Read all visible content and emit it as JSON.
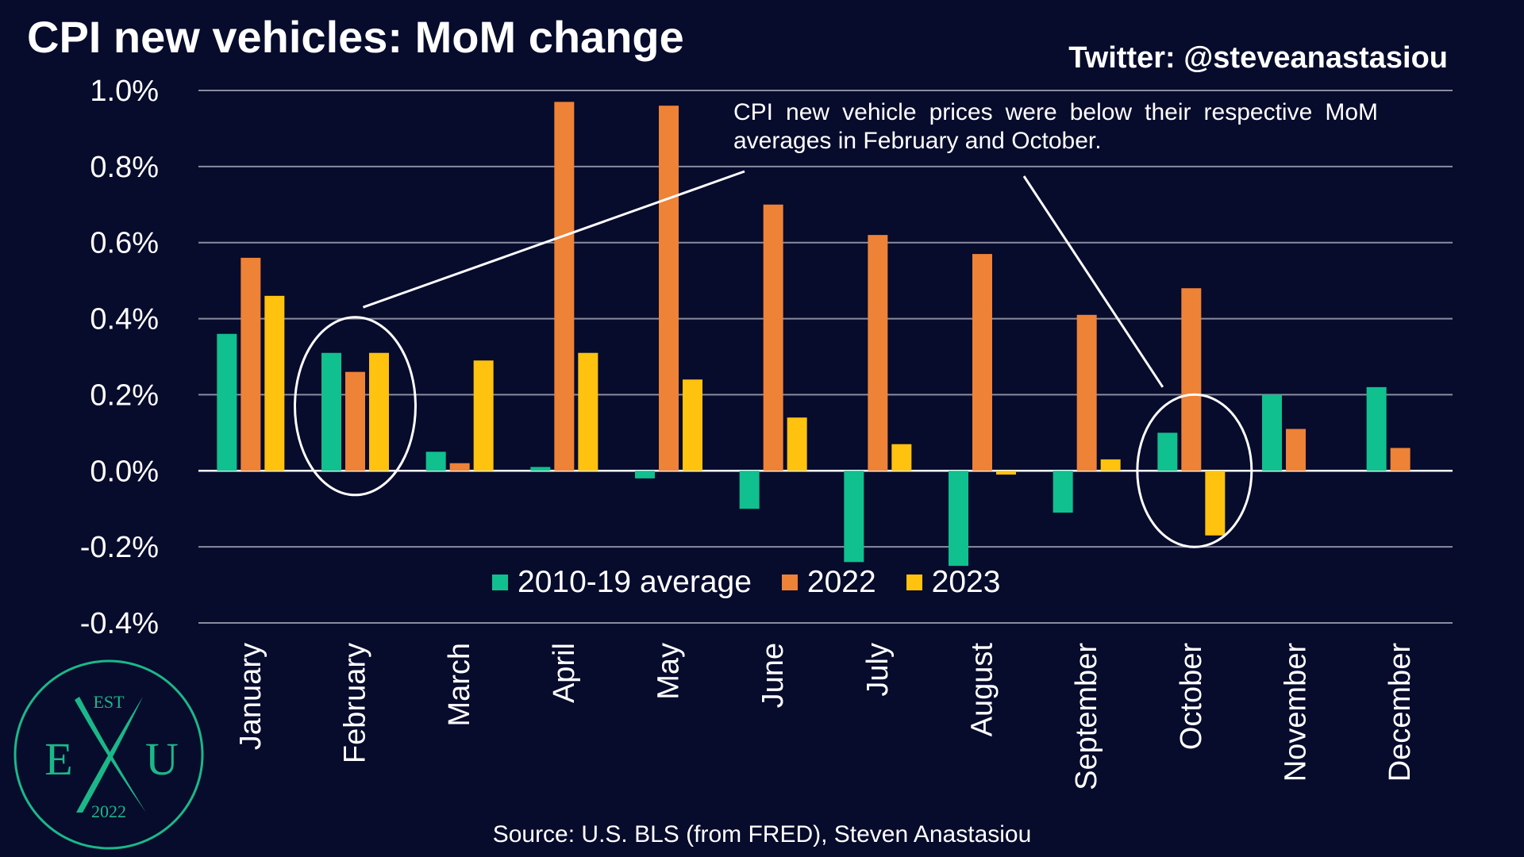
{
  "title": "CPI new vehicles: MoM change",
  "twitter_handle": "Twitter: @steveanastasiou",
  "source": "Source: U.S. BLS (from FRED), Steven Anastasiou",
  "annotation": "CPI new vehicle prices were below their respective MoM averages in February and October.",
  "colors": {
    "background": "#070b2c",
    "gridline": "#8a8ca0",
    "series_2010_19": "#10c08e",
    "series_2022": "#ee8236",
    "series_2023": "#ffc20e",
    "logo": "#1ab889"
  },
  "logo": {
    "top_text": "EST",
    "left_letter": "E",
    "right_letter": "U",
    "bottom_text": "2022"
  },
  "chart_data": {
    "type": "bar",
    "title": "CPI new vehicles: MoM change",
    "categories": [
      "January",
      "February",
      "March",
      "April",
      "May",
      "June",
      "July",
      "August",
      "September",
      "October",
      "November",
      "December"
    ],
    "series": [
      {
        "name": "2010-19 average",
        "color": "#10c08e",
        "values": [
          0.36,
          0.31,
          0.05,
          0.01,
          -0.02,
          -0.1,
          -0.24,
          -0.25,
          -0.11,
          0.1,
          0.2,
          0.22
        ]
      },
      {
        "name": "2022",
        "color": "#ee8236",
        "values": [
          0.56,
          0.26,
          0.02,
          0.97,
          0.96,
          0.7,
          0.62,
          0.57,
          0.41,
          0.48,
          0.11,
          0.06
        ]
      },
      {
        "name": "2023",
        "color": "#ffc20e",
        "values": [
          0.46,
          0.31,
          0.29,
          0.31,
          0.24,
          0.14,
          0.07,
          -0.01,
          0.03,
          -0.17,
          null,
          null
        ]
      }
    ],
    "y_ticks": [
      "1.0%",
      "0.8%",
      "0.6%",
      "0.4%",
      "0.2%",
      "0.0%",
      "-0.2%",
      "-0.4%"
    ],
    "y_tick_values": [
      1.0,
      0.8,
      0.6,
      0.4,
      0.2,
      0.0,
      -0.2,
      -0.4
    ],
    "ylim": [
      -0.4,
      1.0
    ],
    "grid": true,
    "legend_position": "bottom-center",
    "highlights": [
      "February",
      "October"
    ]
  }
}
